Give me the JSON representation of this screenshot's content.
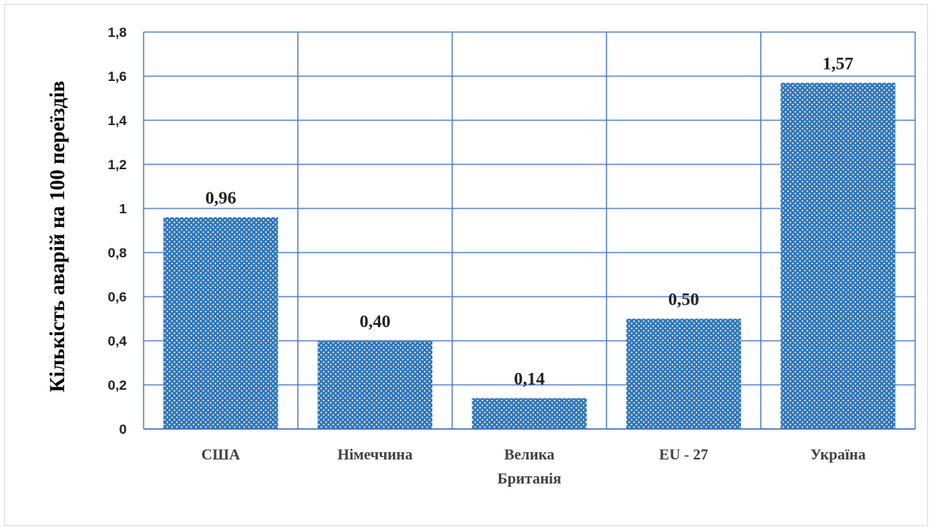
{
  "chart_data": {
    "type": "bar",
    "ylabel": "Кількість аварій на 100 переїздів",
    "categories": [
      [
        "США"
      ],
      [
        "Німеччина"
      ],
      [
        "Велика",
        "Британія"
      ],
      [
        "EU - 27"
      ],
      [
        "Україна"
      ]
    ],
    "values": [
      0.96,
      0.4,
      0.14,
      0.5,
      1.57
    ],
    "data_labels": [
      "0,96",
      "0,40",
      "0,14",
      "0,50",
      "1,57"
    ],
    "ylim": [
      0,
      1.8
    ],
    "yticks": [
      0,
      0.2,
      0.4,
      0.6,
      0.8,
      1,
      1.2,
      1.4,
      1.6,
      1.8
    ],
    "ytick_labels": [
      "0",
      "0,2",
      "0,4",
      "0,6",
      "0,8",
      "1",
      "1,2",
      "1,4",
      "1,6",
      "1,8"
    ],
    "grid": true,
    "colors": {
      "bar": "#2e75b6",
      "grid": "#4472c4",
      "dots": "#ffffff"
    }
  }
}
